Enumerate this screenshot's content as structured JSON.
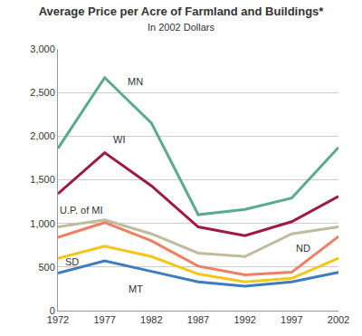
{
  "chart_data": {
    "type": "line",
    "title": "Average Price per Acre of Farmland and Buildings*",
    "subtitle": "In 2002 Dollars",
    "categories": [
      "1972",
      "1977",
      "1982",
      "1987",
      "1992",
      "1997",
      "2002"
    ],
    "series": [
      {
        "name": "MN",
        "color": "#5aab8e",
        "values": [
          1860,
          2670,
          2150,
          1100,
          1160,
          1290,
          1870
        ]
      },
      {
        "name": "WI",
        "color": "#9e1b3f",
        "values": [
          1340,
          1810,
          1430,
          960,
          860,
          1020,
          1310
        ]
      },
      {
        "name": "U.P. of MI",
        "color": "#bfbb9c",
        "values": [
          960,
          1040,
          880,
          660,
          620,
          880,
          960
        ]
      },
      {
        "name": "ND",
        "color": "#ee7f62",
        "values": [
          840,
          1010,
          800,
          510,
          410,
          440,
          850
        ]
      },
      {
        "name": "SD",
        "color": "#f6c51a",
        "values": [
          600,
          740,
          620,
          420,
          330,
          370,
          600
        ]
      },
      {
        "name": "MT",
        "color": "#3b7dbf",
        "values": [
          430,
          570,
          450,
          330,
          280,
          330,
          440
        ]
      }
    ],
    "ylim": [
      0,
      3000
    ],
    "yticks": [
      0,
      500,
      {
        "value": 1000,
        "label": "1,000"
      },
      {
        "value": 1500,
        "label": "1,500"
      },
      {
        "value": 2000,
        "label": "2,000"
      },
      {
        "value": 2500,
        "label": "2,500"
      },
      {
        "value": 3000,
        "label": "3,000"
      }
    ],
    "grid": true
  }
}
